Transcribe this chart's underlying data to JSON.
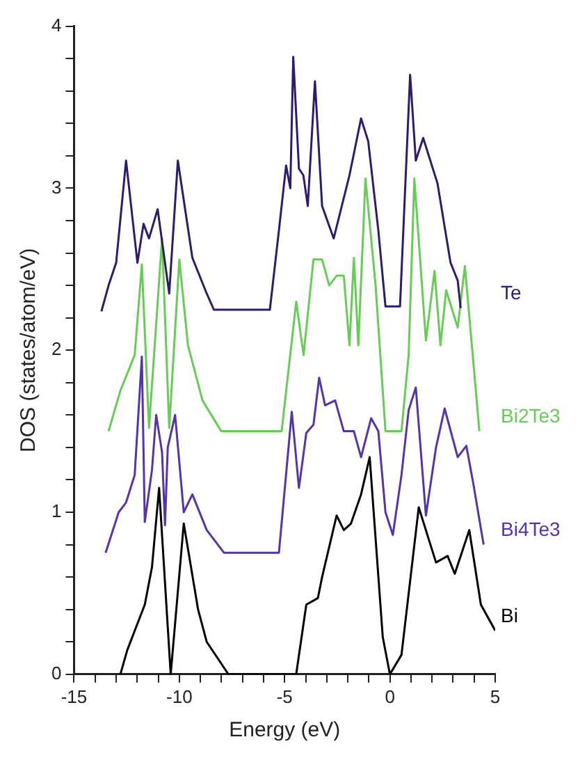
{
  "chart_data": {
    "type": "line",
    "xlabel": "Energy (eV)",
    "ylabel": "DOS (states/atom/eV)",
    "xlim": [
      -15,
      5
    ],
    "ylim": [
      0,
      4
    ],
    "xticks": [
      -15,
      {
        "value": -14,
        "label": null
      },
      {
        "value": -13,
        "label": null
      },
      {
        "value": -12,
        "label": null
      },
      {
        "value": -11,
        "label": null
      },
      -10,
      {
        "value": -9,
        "label": null
      },
      {
        "value": -8,
        "label": null
      },
      {
        "value": -7,
        "label": null
      },
      {
        "value": -6,
        "label": null
      },
      -5,
      {
        "value": -4,
        "label": null
      },
      {
        "value": -3,
        "label": null
      },
      {
        "value": -2,
        "label": null
      },
      {
        "value": -1,
        "label": null
      },
      0,
      {
        "value": 1,
        "label": null
      },
      {
        "value": 2,
        "label": null
      },
      {
        "value": 3,
        "label": null
      },
      {
        "value": 4,
        "label": null
      },
      5
    ],
    "yticks": [
      0,
      {
        "value": 0.2,
        "label": null
      },
      {
        "value": 0.4,
        "label": null
      },
      {
        "value": 0.6,
        "label": null
      },
      {
        "value": 0.8,
        "label": null
      },
      1,
      {
        "value": 1.2,
        "label": null
      },
      {
        "value": 1.4,
        "label": null
      },
      {
        "value": 1.6,
        "label": null
      },
      {
        "value": 1.8,
        "label": null
      },
      2,
      {
        "value": 2.2,
        "label": null
      },
      {
        "value": 2.4,
        "label": null
      },
      {
        "value": 2.6,
        "label": null
      },
      {
        "value": 2.8,
        "label": null
      },
      3,
      {
        "value": 3.2,
        "label": null
      },
      {
        "value": 3.4,
        "label": null
      },
      {
        "value": 3.6,
        "label": null
      },
      {
        "value": 3.8,
        "label": null
      },
      4
    ],
    "grid": false,
    "legend": false,
    "marker": "none",
    "line_style": "solid",
    "series": [
      {
        "name": "Te",
        "color": "#2e1a6e",
        "x": [
          -13.7,
          -13.36,
          -13.0,
          -12.53,
          -11.99,
          -11.7,
          -11.44,
          -11.03,
          -10.48,
          -10.07,
          -9.38,
          -8.7,
          -8.36,
          -5.7,
          -5.27,
          -4.93,
          -4.73,
          -4.59,
          -4.32,
          -4.11,
          -3.9,
          -3.56,
          -3.22,
          -2.67,
          -1.92,
          -1.37,
          -1.03,
          -0.55,
          -0.21,
          0.48,
          0.96,
          1.23,
          1.58,
          2.26,
          2.88,
          3.22,
          3.36
        ],
        "values": [
          2.24,
          2.4,
          2.54,
          3.17,
          2.54,
          2.78,
          2.69,
          2.87,
          2.35,
          3.17,
          2.57,
          2.35,
          2.25,
          2.25,
          2.74,
          3.14,
          3.0,
          3.81,
          3.12,
          3.08,
          2.89,
          3.66,
          2.89,
          2.69,
          3.08,
          3.43,
          3.29,
          2.74,
          2.27,
          2.27,
          3.7,
          3.17,
          3.31,
          3.03,
          2.54,
          2.43,
          2.26
        ]
      },
      {
        "name": "Bi2Te3",
        "color": "#66cc55",
        "x": [
          -13.36,
          -12.8,
          -12.12,
          -11.78,
          -11.44,
          -10.82,
          -10.48,
          -10.0,
          -9.59,
          -8.9,
          -8.01,
          -5.14,
          -4.45,
          -4.1,
          -3.63,
          -3.22,
          -2.88,
          -2.53,
          -2.19,
          -1.92,
          -1.71,
          -1.5,
          -1.16,
          -0.68,
          -0.21,
          0.55,
          0.89,
          1.16,
          1.71,
          2.12,
          2.4,
          2.67,
          3.22,
          3.56,
          4.25
        ],
        "values": [
          1.5,
          1.75,
          1.97,
          2.53,
          1.52,
          2.69,
          1.52,
          2.56,
          2.03,
          1.69,
          1.5,
          1.5,
          2.3,
          1.97,
          2.56,
          2.56,
          2.4,
          2.46,
          2.46,
          2.03,
          2.57,
          2.03,
          3.06,
          2.4,
          1.5,
          1.5,
          1.97,
          3.06,
          2.06,
          2.49,
          2.03,
          2.37,
          2.14,
          2.52,
          1.5
        ]
      },
      {
        "name": "Bi4Te3",
        "color": "#5533aa",
        "x": [
          -13.5,
          -12.88,
          -12.53,
          -12.12,
          -11.78,
          -11.64,
          -11.3,
          -11.1,
          -10.82,
          -10.68,
          -10.55,
          -10.2,
          -9.79,
          -9.38,
          -8.7,
          -7.88,
          -5.27,
          -4.66,
          -4.32,
          -3.97,
          -3.63,
          -3.36,
          -3.08,
          -2.6,
          -2.19,
          -1.71,
          -1.37,
          -0.89,
          -0.55,
          -0.21,
          0.14,
          0.55,
          0.89,
          1.23,
          1.71,
          2.19,
          2.6,
          3.22,
          3.63,
          3.97,
          4.45
        ],
        "values": [
          0.75,
          1.0,
          1.06,
          1.23,
          1.96,
          0.94,
          1.26,
          1.6,
          1.37,
          0.92,
          1.4,
          1.6,
          1.0,
          1.11,
          0.89,
          0.75,
          0.75,
          1.62,
          1.15,
          1.49,
          1.54,
          1.83,
          1.66,
          1.69,
          1.5,
          1.5,
          1.34,
          1.58,
          1.5,
          1.0,
          0.86,
          1.23,
          1.63,
          1.77,
          0.98,
          1.4,
          1.64,
          1.34,
          1.41,
          1.17,
          0.8
        ]
      },
      {
        "name": "Bi",
        "color": "#000000",
        "x": [
          -12.8,
          -12.47,
          -11.64,
          -11.3,
          -10.96,
          -10.41,
          -9.79,
          -9.11,
          -8.7,
          -7.67,
          -4.45,
          -3.97,
          -3.42,
          -3.22,
          -2.53,
          -2.19,
          -1.85,
          -1.37,
          -0.96,
          -0.34,
          0.0,
          0.55,
          1.37,
          2.19,
          2.74,
          3.08,
          3.77,
          4.32,
          5.0
        ],
        "values": [
          0.0,
          0.15,
          0.43,
          0.66,
          1.15,
          0.0,
          0.93,
          0.4,
          0.2,
          0.0,
          0.0,
          0.43,
          0.47,
          0.6,
          0.98,
          0.89,
          0.93,
          1.11,
          1.34,
          0.23,
          0.0,
          0.12,
          1.03,
          0.69,
          0.73,
          0.62,
          0.89,
          0.43,
          0.27
        ]
      }
    ]
  }
}
